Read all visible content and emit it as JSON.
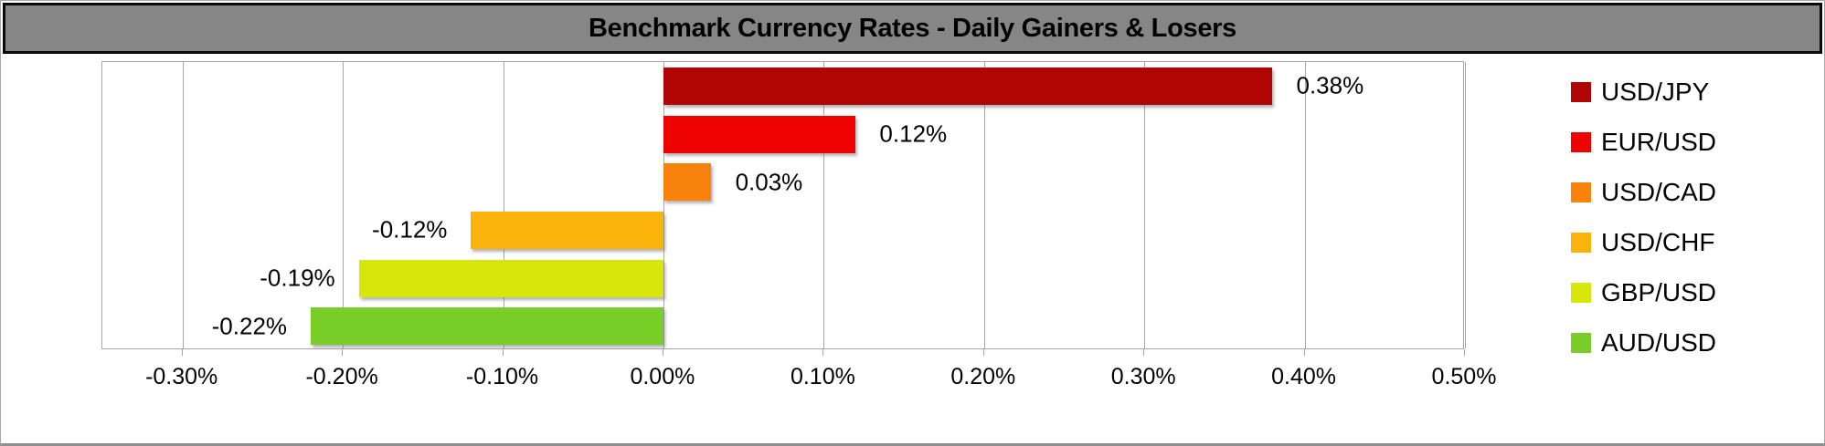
{
  "title": "Benchmark Currency Rates - Daily Gainers & Losers",
  "chart_data": {
    "type": "bar",
    "orientation": "horizontal",
    "title": "Benchmark Currency Rates - Daily Gainers & Losers",
    "grid": "vertical",
    "legend_position": "right",
    "categories": [
      "USD/JPY",
      "EUR/USD",
      "USD/CAD",
      "USD/CHF",
      "GBP/USD",
      "AUD/USD"
    ],
    "series": [
      {
        "name": "USD/JPY",
        "value": 0.38,
        "label": "0.38%",
        "color": "#b00505"
      },
      {
        "name": "EUR/USD",
        "value": 0.12,
        "label": "0.12%",
        "color": "#ee0202"
      },
      {
        "name": "USD/CAD",
        "value": 0.03,
        "label": "0.03%",
        "color": "#f8820c"
      },
      {
        "name": "USD/CHF",
        "value": -0.12,
        "label": "-0.12%",
        "color": "#fab30a"
      },
      {
        "name": "GBP/USD",
        "value": -0.19,
        "label": "-0.19%",
        "color": "#d7e70c"
      },
      {
        "name": "AUD/USD",
        "value": -0.22,
        "label": "-0.22%",
        "color": "#78ce27"
      }
    ],
    "x_axis": {
      "min": -0.35,
      "max": 0.5,
      "tick_values": [
        -0.3,
        -0.2,
        -0.1,
        0.0,
        0.1,
        0.2,
        0.3,
        0.4,
        0.5
      ],
      "tick_labels": [
        "-0.30%",
        "-0.20%",
        "-0.10%",
        "0.00%",
        "0.10%",
        "0.20%",
        "0.30%",
        "0.40%",
        "0.50%"
      ]
    },
    "colors": {
      "title_bar_bg": "#868686",
      "title_bar_border": "#0a0a0a",
      "gridline": "#a6a6a6",
      "plot_border": "#a6a6a6",
      "text": "#000000"
    }
  }
}
